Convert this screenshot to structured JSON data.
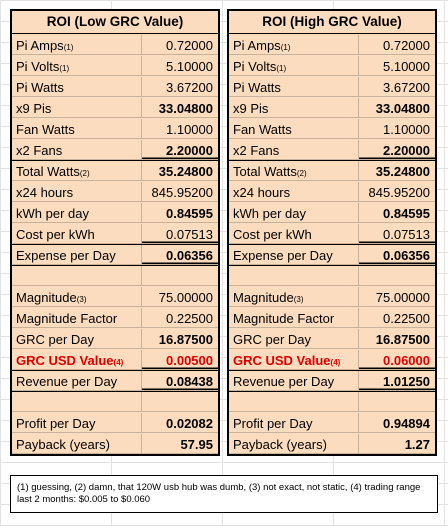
{
  "tables": [
    {
      "title": "ROI (Low GRC Value)",
      "rows": [
        {
          "label": "Pi Amps",
          "sub": "(1)",
          "value": "0.72000",
          "bold": false,
          "red": false,
          "underline": false
        },
        {
          "label": "Pi Volts",
          "sub": "(1)",
          "value": "5.10000",
          "bold": false,
          "red": false,
          "underline": false
        },
        {
          "label": "Pi Watts",
          "sub": "",
          "value": "3.67200",
          "bold": false,
          "red": false,
          "underline": false
        },
        {
          "label": "x9 Pis",
          "sub": "",
          "value": "33.04800",
          "bold": true,
          "red": false,
          "underline": false
        },
        {
          "label": "Fan Watts",
          "sub": "",
          "value": "1.10000",
          "bold": false,
          "red": false,
          "underline": false
        },
        {
          "label": "x2 Fans",
          "sub": "",
          "value": "2.20000",
          "bold": true,
          "red": false,
          "underline": true
        },
        {
          "label": "Total Watts",
          "sub": "(2)",
          "value": "35.24800",
          "bold": true,
          "red": false,
          "underline": false
        },
        {
          "label": "x24 hours",
          "sub": "",
          "value": "845.95200",
          "bold": false,
          "red": false,
          "underline": false
        },
        {
          "label": "kWh per day",
          "sub": "",
          "value": "0.84595",
          "bold": true,
          "red": false,
          "underline": false
        },
        {
          "label": "Cost per kWh",
          "sub": "",
          "value": "0.07513",
          "bold": false,
          "red": false,
          "underline": true
        },
        {
          "label": "Expense per Day",
          "sub": "",
          "value": "0.06356",
          "bold": true,
          "red": false,
          "underline": true
        },
        {
          "label": "",
          "sub": "",
          "value": "",
          "bold": false,
          "red": false,
          "underline": false
        },
        {
          "label": "Magnitude",
          "sub": "(3)",
          "value": "75.00000",
          "bold": false,
          "red": false,
          "underline": false
        },
        {
          "label": "Magnitude Factor",
          "sub": "",
          "value": "0.22500",
          "bold": false,
          "red": false,
          "underline": false
        },
        {
          "label": "GRC per Day",
          "sub": "",
          "value": "16.87500",
          "bold": true,
          "red": false,
          "underline": false
        },
        {
          "label": "GRC USD Value",
          "sub": "(4)",
          "value": "0.00500",
          "bold": true,
          "red": true,
          "underline": true
        },
        {
          "label": "Revenue per Day",
          "sub": "",
          "value": "0.08438",
          "bold": true,
          "red": false,
          "underline": true
        },
        {
          "label": "",
          "sub": "",
          "value": "",
          "bold": false,
          "red": false,
          "underline": false
        },
        {
          "label": "Profit per Day",
          "sub": "",
          "value": "0.02082",
          "bold": true,
          "red": false,
          "underline": false
        },
        {
          "label": "Payback (years)",
          "sub": "",
          "value": "57.95",
          "bold": true,
          "red": false,
          "underline": false
        }
      ]
    },
    {
      "title": "ROI (High GRC Value)",
      "rows": [
        {
          "label": "Pi Amps",
          "sub": "(1)",
          "value": "0.72000",
          "bold": false,
          "red": false,
          "underline": false
        },
        {
          "label": "Pi Volts",
          "sub": "(1)",
          "value": "5.10000",
          "bold": false,
          "red": false,
          "underline": false
        },
        {
          "label": "Pi Watts",
          "sub": "",
          "value": "3.67200",
          "bold": false,
          "red": false,
          "underline": false
        },
        {
          "label": "x9 Pis",
          "sub": "",
          "value": "33.04800",
          "bold": true,
          "red": false,
          "underline": false
        },
        {
          "label": "Fan Watts",
          "sub": "",
          "value": "1.10000",
          "bold": false,
          "red": false,
          "underline": false
        },
        {
          "label": "x2 Fans",
          "sub": "",
          "value": "2.20000",
          "bold": true,
          "red": false,
          "underline": true
        },
        {
          "label": "Total Watts",
          "sub": "(2)",
          "value": "35.24800",
          "bold": true,
          "red": false,
          "underline": false
        },
        {
          "label": "x24 hours",
          "sub": "",
          "value": "845.95200",
          "bold": false,
          "red": false,
          "underline": false
        },
        {
          "label": "kWh per day",
          "sub": "",
          "value": "0.84595",
          "bold": true,
          "red": false,
          "underline": false
        },
        {
          "label": "Cost per kWh",
          "sub": "",
          "value": "0.07513",
          "bold": false,
          "red": false,
          "underline": true
        },
        {
          "label": "Expense per Day",
          "sub": "",
          "value": "0.06356",
          "bold": true,
          "red": false,
          "underline": true
        },
        {
          "label": "",
          "sub": "",
          "value": "",
          "bold": false,
          "red": false,
          "underline": false
        },
        {
          "label": "Magnitude",
          "sub": "(3)",
          "value": "75.00000",
          "bold": false,
          "red": false,
          "underline": false
        },
        {
          "label": "Magnitude Factor",
          "sub": "",
          "value": "0.22500",
          "bold": false,
          "red": false,
          "underline": false
        },
        {
          "label": "GRC per Day",
          "sub": "",
          "value": "16.87500",
          "bold": true,
          "red": false,
          "underline": false
        },
        {
          "label": "GRC USD Value",
          "sub": "(4)",
          "value": "0.06000",
          "bold": true,
          "red": true,
          "underline": true
        },
        {
          "label": "Revenue per Day",
          "sub": "",
          "value": "1.01250",
          "bold": true,
          "red": false,
          "underline": true
        },
        {
          "label": "",
          "sub": "",
          "value": "",
          "bold": false,
          "red": false,
          "underline": false
        },
        {
          "label": "Profit per Day",
          "sub": "",
          "value": "0.94894",
          "bold": true,
          "red": false,
          "underline": false
        },
        {
          "label": "Payback (years)",
          "sub": "",
          "value": "1.27",
          "bold": true,
          "red": false,
          "underline": false
        }
      ]
    }
  ],
  "footnote": "(1) guessing, (2) damn, that 120W usb hub was dumb, (3) not exact, not static, (4) trading range last 2 months: $0.005 to $0.060",
  "colors": {
    "table_fill": "#fcdcbe",
    "highlight_red": "#e00000",
    "border": "#000000"
  }
}
